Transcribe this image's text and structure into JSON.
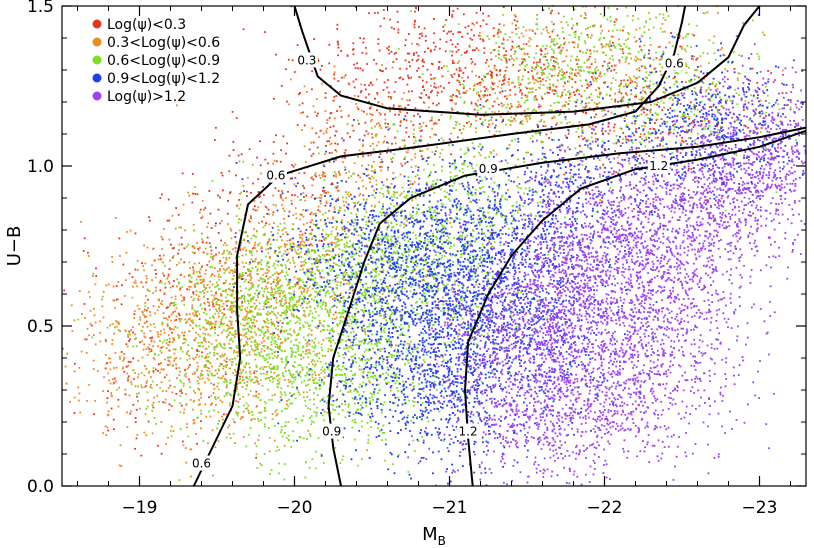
{
  "chart_data": {
    "type": "scatter",
    "title": "",
    "xlabel_main": "M",
    "xlabel_sub": "B",
    "ylabel": "U−B",
    "xlim": [
      -18.5,
      -23.3
    ],
    "ylim": [
      0.0,
      1.5
    ],
    "x_reversed": true,
    "xticks": [
      -19,
      -20,
      -21,
      -22,
      -23
    ],
    "xtick_labels": [
      "−19",
      "−20",
      "−21",
      "−22",
      "−23"
    ],
    "yticks": [
      0.0,
      0.5,
      1.0,
      1.5
    ],
    "ytick_labels": [
      "0.0",
      "0.5",
      "1.0",
      "1.5"
    ],
    "grid": false,
    "legend_position": "top-left",
    "series": [
      {
        "name": "Log(ψ)<0.3",
        "color": "#e8351f",
        "approx_points": 1400,
        "cluster_center": [
          -20.9,
          1.15
        ],
        "values_sample": [
          [
            -21.0,
            1.32
          ],
          [
            -21.3,
            1.28
          ],
          [
            -20.8,
            1.25
          ],
          [
            -21.6,
            1.3
          ],
          [
            -20.5,
            1.2
          ],
          [
            -21.9,
            1.22
          ],
          [
            -19.6,
            0.75
          ],
          [
            -19.3,
            0.6
          ],
          [
            -19.9,
            0.9
          ],
          [
            -20.2,
            1.05
          ],
          [
            -22.2,
            1.18
          ],
          [
            -21.2,
            1.4
          ],
          [
            -19.1,
            0.35
          ],
          [
            -22.4,
            1.12
          ],
          [
            -20.6,
            1.35
          ]
        ]
      },
      {
        "name": "0.3<Log(ψ)<0.6",
        "color": "#f08a24",
        "approx_points": 2200,
        "cluster_center": [
          -19.8,
          0.62
        ],
        "values_sample": [
          [
            -19.6,
            0.6
          ],
          [
            -19.4,
            0.52
          ],
          [
            -19.9,
            0.7
          ],
          [
            -19.2,
            0.45
          ],
          [
            -20.1,
            0.78
          ],
          [
            -19.7,
            0.4
          ],
          [
            -20.4,
            0.95
          ],
          [
            -19.5,
            0.3
          ],
          [
            -21.4,
            1.25
          ],
          [
            -21.9,
            1.3
          ],
          [
            -20.0,
            0.55
          ],
          [
            -19.0,
            0.35
          ],
          [
            -22.3,
            1.28
          ],
          [
            -20.6,
            1.1
          ],
          [
            -19.3,
            0.65
          ]
        ]
      },
      {
        "name": "0.6<Log(ψ)<0.9",
        "color": "#7be021",
        "approx_points": 3500,
        "cluster_center": [
          -20.3,
          0.62
        ],
        "values_sample": [
          [
            -20.3,
            0.62
          ],
          [
            -20.0,
            0.55
          ],
          [
            -20.6,
            0.7
          ],
          [
            -20.2,
            0.45
          ],
          [
            -19.9,
            0.65
          ],
          [
            -20.8,
            0.8
          ],
          [
            -20.5,
            0.35
          ],
          [
            -19.7,
            0.5
          ],
          [
            -21.1,
            0.95
          ],
          [
            -22.0,
            1.35
          ],
          [
            -21.5,
            1.25
          ],
          [
            -20.1,
            0.25
          ],
          [
            -20.9,
            0.6
          ],
          [
            -22.5,
            1.2
          ],
          [
            -19.6,
            0.4
          ]
        ]
      },
      {
        "name": "0.9<Log(ψ)<1.2",
        "color": "#1f3ff0",
        "approx_points": 4200,
        "cluster_center": [
          -21.0,
          0.62
        ],
        "values_sample": [
          [
            -21.0,
            0.62
          ],
          [
            -20.8,
            0.55
          ],
          [
            -21.2,
            0.7
          ],
          [
            -20.9,
            0.4
          ],
          [
            -21.3,
            0.5
          ],
          [
            -20.6,
            0.65
          ],
          [
            -21.5,
            0.8
          ],
          [
            -20.7,
            0.3
          ],
          [
            -21.8,
            0.95
          ],
          [
            -22.5,
            1.15
          ],
          [
            -21.1,
            0.25
          ],
          [
            -20.4,
            0.75
          ],
          [
            -22.8,
            1.1
          ],
          [
            -21.6,
            0.45
          ],
          [
            -20.9,
            0.85
          ]
        ]
      },
      {
        "name": "Log(ψ)>1.2",
        "color": "#9f42f0",
        "approx_points": 5200,
        "cluster_center": [
          -21.9,
          0.62
        ],
        "values_sample": [
          [
            -21.8,
            0.7
          ],
          [
            -22.0,
            0.62
          ],
          [
            -21.6,
            0.55
          ],
          [
            -22.3,
            0.75
          ],
          [
            -21.4,
            0.45
          ],
          [
            -22.6,
            0.85
          ],
          [
            -22.1,
            0.4
          ],
          [
            -21.7,
            0.3
          ],
          [
            -22.8,
            0.95
          ],
          [
            -23.0,
            1.1
          ],
          [
            -21.5,
            0.2
          ],
          [
            -22.4,
            0.55
          ],
          [
            -21.9,
            0.85
          ],
          [
            -23.2,
            1.0
          ],
          [
            -22.2,
            0.25
          ]
        ]
      }
    ],
    "contours": [
      {
        "label": "0.3",
        "level": 0.3,
        "points": [
          [
            -20.0,
            1.5
          ],
          [
            -20.05,
            1.42
          ],
          [
            -20.1,
            1.35
          ],
          [
            -20.15,
            1.28
          ],
          [
            -20.3,
            1.22
          ],
          [
            -20.6,
            1.18
          ],
          [
            -21.2,
            1.16
          ],
          [
            -21.8,
            1.17
          ],
          [
            -22.3,
            1.2
          ],
          [
            -22.6,
            1.26
          ],
          [
            -22.8,
            1.34
          ],
          [
            -22.9,
            1.44
          ],
          [
            -23.0,
            1.5
          ]
        ],
        "label_at": [
          -20.08,
          1.33
        ]
      },
      {
        "label": "0.6",
        "level": 0.6,
        "points": [
          [
            -19.35,
            0.0
          ],
          [
            -19.45,
            0.1
          ],
          [
            -19.6,
            0.25
          ],
          [
            -19.65,
            0.4
          ],
          [
            -19.63,
            0.55
          ],
          [
            -19.63,
            0.72
          ],
          [
            -19.7,
            0.88
          ],
          [
            -19.9,
            0.97
          ],
          [
            -20.3,
            1.03
          ],
          [
            -20.8,
            1.06
          ],
          [
            -21.4,
            1.1
          ],
          [
            -21.9,
            1.13
          ],
          [
            -22.2,
            1.17
          ],
          [
            -22.35,
            1.25
          ],
          [
            -22.45,
            1.35
          ],
          [
            -22.5,
            1.45
          ],
          [
            -22.52,
            1.5
          ]
        ],
        "label_at": [
          -19.88,
          0.97
        ],
        "label_at_2": [
          -19.4,
          0.07
        ],
        "label_at_3": [
          -22.45,
          1.32
        ]
      },
      {
        "label": "0.9",
        "level": 0.9,
        "points": [
          [
            -20.3,
            0.0
          ],
          [
            -20.25,
            0.12
          ],
          [
            -20.22,
            0.25
          ],
          [
            -20.25,
            0.4
          ],
          [
            -20.35,
            0.55
          ],
          [
            -20.45,
            0.7
          ],
          [
            -20.55,
            0.82
          ],
          [
            -20.75,
            0.9
          ],
          [
            -21.1,
            0.97
          ],
          [
            -21.6,
            1.01
          ],
          [
            -22.1,
            1.04
          ],
          [
            -22.6,
            1.06
          ],
          [
            -23.0,
            1.09
          ],
          [
            -23.3,
            1.12
          ]
        ],
        "label_at": [
          -21.25,
          0.99
        ],
        "label_at_2": [
          -20.24,
          0.17
        ]
      },
      {
        "label": "1.2",
        "level": 1.2,
        "points": [
          [
            -21.15,
            0.0
          ],
          [
            -21.12,
            0.15
          ],
          [
            -21.1,
            0.3
          ],
          [
            -21.12,
            0.45
          ],
          [
            -21.25,
            0.6
          ],
          [
            -21.4,
            0.72
          ],
          [
            -21.6,
            0.83
          ],
          [
            -21.85,
            0.93
          ],
          [
            -22.2,
            0.99
          ],
          [
            -22.6,
            1.02
          ],
          [
            -23.0,
            1.06
          ],
          [
            -23.3,
            1.11
          ]
        ],
        "label_at": [
          -22.35,
          1.0
        ],
        "label_at_2": [
          -21.12,
          0.17
        ]
      }
    ]
  }
}
